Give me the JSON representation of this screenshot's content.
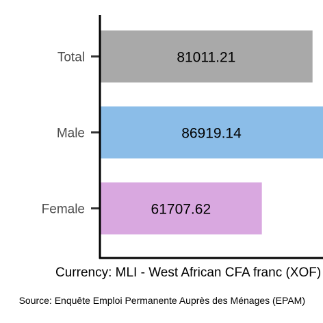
{
  "chart_data": {
    "type": "bar",
    "orientation": "horizontal",
    "categories": [
      "Total",
      "Male",
      "Female"
    ],
    "values": [
      81011.21,
      86919.14,
      61707.62
    ],
    "value_labels": [
      "81011.21",
      "86919.14",
      "61707.62"
    ],
    "colors": [
      "#a9a9a9",
      "#8bbde8",
      "#d9a8e0"
    ],
    "xlabel": "Currency: MLI - West African CFA franc (XOF)",
    "ylabel": "",
    "title": "",
    "xlim": [
      0,
      85000
    ],
    "grid": false,
    "legend": "none",
    "caption": "Source: Enquête Emploi Permanente Auprès des Ménages (EPAM)"
  }
}
